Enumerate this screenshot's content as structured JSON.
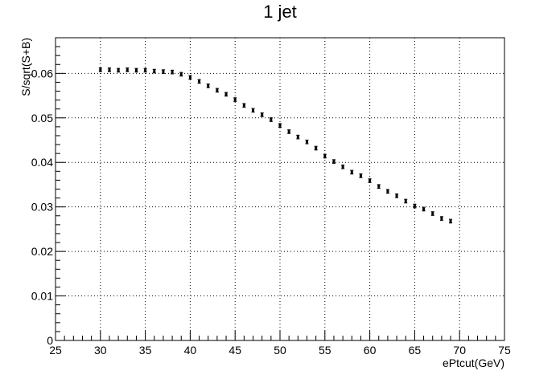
{
  "chart_data": {
    "type": "scatter",
    "title": "1 jet",
    "xlabel": "ePtcut(GeV)",
    "ylabel": "S/sqrt(S+B)",
    "xlim": [
      25,
      75
    ],
    "ylim": [
      0,
      0.068
    ],
    "grid": true,
    "x_ticks": [
      25,
      30,
      35,
      40,
      45,
      50,
      55,
      60,
      65,
      70,
      75
    ],
    "x_tick_labels": [
      "25",
      "30",
      "35",
      "40",
      "45",
      "50",
      "55",
      "60",
      "65",
      "70",
      "75"
    ],
    "y_ticks": [
      0,
      0.01,
      0.02,
      0.03,
      0.04,
      0.05,
      0.06
    ],
    "y_tick_labels": [
      "0",
      "0.01",
      "0.02",
      "0.03",
      "0.04",
      "0.05",
      "0.06"
    ],
    "series": [
      {
        "x": [
          30,
          31,
          32,
          33,
          34,
          35,
          36,
          37,
          38,
          39,
          40,
          41,
          42,
          43,
          44,
          45,
          46,
          47,
          48,
          49,
          50,
          51,
          52,
          53,
          54,
          55,
          56,
          57,
          58,
          59,
          60,
          61,
          62,
          63,
          64,
          65,
          66,
          67,
          68,
          69
        ],
        "y": [
          0.0608,
          0.0608,
          0.0607,
          0.0608,
          0.0607,
          0.0607,
          0.0605,
          0.0604,
          0.0603,
          0.0598,
          0.0591,
          0.0582,
          0.0572,
          0.0562,
          0.0553,
          0.0541,
          0.0528,
          0.0517,
          0.0507,
          0.0496,
          0.0483,
          0.0469,
          0.0457,
          0.0446,
          0.0432,
          0.0414,
          0.0402,
          0.039,
          0.0378,
          0.037,
          0.0359,
          0.0346,
          0.0335,
          0.0325,
          0.0313,
          0.0302,
          0.0295,
          0.0285,
          0.0274,
          0.0268
        ],
        "err": [
          0.0004,
          0.0004,
          0.0004,
          0.0004,
          0.0004,
          0.0004,
          0.0004,
          0.0004,
          0.0004,
          0.0004,
          0.0004,
          0.0004,
          0.0004,
          0.0004,
          0.0004,
          0.0004,
          0.0004,
          0.0004,
          0.0004,
          0.0004,
          0.0004,
          0.0004,
          0.0004,
          0.0004,
          0.0004,
          0.0004,
          0.0004,
          0.0004,
          0.0004,
          0.0004,
          0.0004,
          0.0004,
          0.0004,
          0.0004,
          0.0004,
          0.0004,
          0.0004,
          0.0004,
          0.0004,
          0.0004
        ]
      }
    ]
  }
}
